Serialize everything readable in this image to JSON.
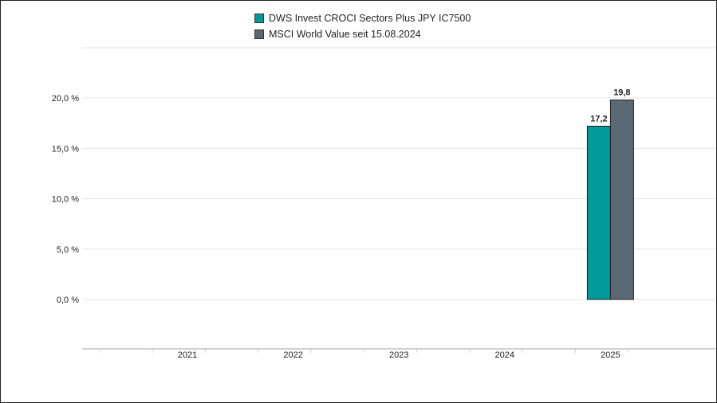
{
  "chart_data": {
    "type": "bar",
    "title": "",
    "xlabel": "",
    "ylabel": "",
    "categories": [
      "2021",
      "2022",
      "2023",
      "2024",
      "2025"
    ],
    "series": [
      {
        "name": "DWS Invest CROCI Sectors Plus JPY IC7500",
        "color": "#009a9a",
        "values": [
          null,
          null,
          null,
          null,
          17.2
        ],
        "labels": [
          "",
          "",
          "",
          "",
          "17,2"
        ]
      },
      {
        "name": "MSCI World Value seit 15.08.2024",
        "color": "#5a6873",
        "values": [
          null,
          null,
          null,
          null,
          19.8
        ],
        "labels": [
          "",
          "",
          "",
          "",
          "19,8"
        ]
      }
    ],
    "yticks": [
      0,
      5,
      10,
      15,
      20
    ],
    "ytick_labels": [
      "0,0 %",
      "5,0 %",
      "10,0 %",
      "15,0 %",
      "20,0 %"
    ],
    "ylim": [
      -5,
      25
    ],
    "grid": true,
    "legend_position": "top-center"
  }
}
